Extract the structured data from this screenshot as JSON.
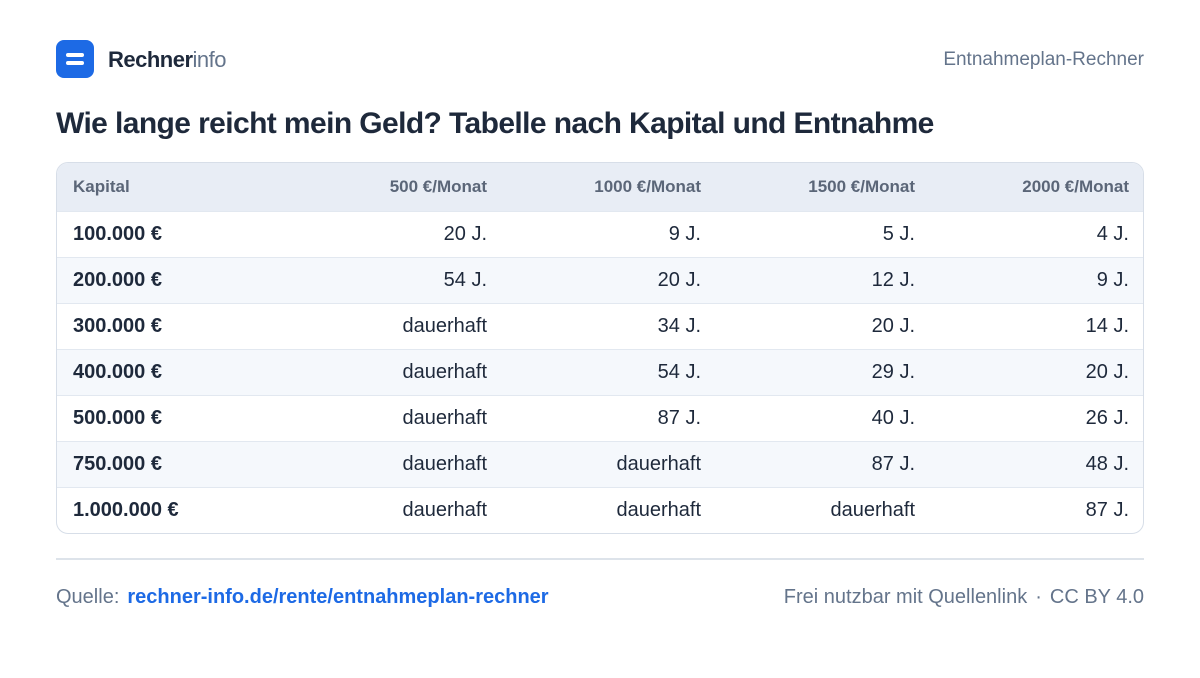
{
  "header": {
    "brand_strong": "Rechner",
    "brand_light": "info",
    "right_label": "Entnahmeplan-Rechner"
  },
  "title": "Wie lange reicht mein Geld? Tabelle nach Kapital und Entnahme",
  "table": {
    "columns": [
      "Kapital",
      "500 €/Monat",
      "1000 €/Monat",
      "1500 €/Monat",
      "2000 €/Monat"
    ],
    "rows": [
      [
        "100.000 €",
        "20 J.",
        "9 J.",
        "5 J.",
        "4 J."
      ],
      [
        "200.000 €",
        "54 J.",
        "20 J.",
        "12 J.",
        "9 J."
      ],
      [
        "300.000 €",
        "dauerhaft",
        "34 J.",
        "20 J.",
        "14 J."
      ],
      [
        "400.000 €",
        "dauerhaft",
        "54 J.",
        "29 J.",
        "20 J."
      ],
      [
        "500.000 €",
        "dauerhaft",
        "87 J.",
        "40 J.",
        "26 J."
      ],
      [
        "750.000 €",
        "dauerhaft",
        "dauerhaft",
        "87 J.",
        "48 J."
      ],
      [
        "1.000.000 €",
        "dauerhaft",
        "dauerhaft",
        "dauerhaft",
        "87 J."
      ]
    ]
  },
  "footer": {
    "source_label": "Quelle:",
    "source_link": "rechner-info.de/rente/entnahmeplan-rechner",
    "license_text": "Frei nutzbar mit Quellenlink",
    "separator": "·",
    "license": "CC BY 4.0"
  },
  "colors": {
    "accent": "#1d6ae5",
    "text": "#1e293b",
    "muted": "#64748b",
    "header_row": "#e8edf5",
    "zebra_row": "#f5f8fc"
  }
}
